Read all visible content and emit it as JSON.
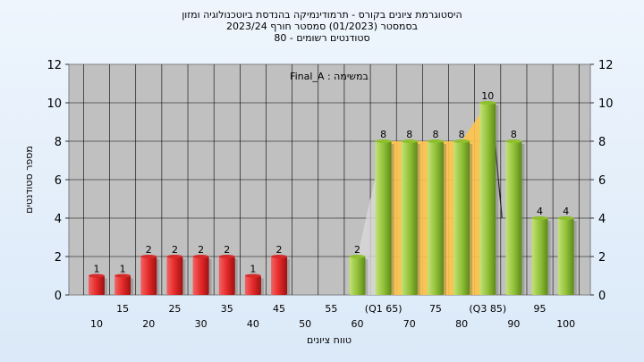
{
  "header": {
    "title_line1": "היסטוגרמת ציונים בקורס - תרמודינמיקה בהנדסת ביוטכנולוגיה ומזון",
    "title_line2": "בסמסטר  (01/2023)  סמסטר חורף  2023/24",
    "title_line3": "סטודנטים רשומים - 80"
  },
  "chart_data": {
    "type": "bar",
    "title": "היסטוגרמת ציונים בקורס - תרמודינמיקה בהנדסת ביוטכנולוגיה ומזון",
    "annotation": "במשימה : Final_A",
    "xlabel": "טווח ציונים",
    "ylabel": "מספר סטודנטים",
    "ylim": [
      0,
      12
    ],
    "y_ticks": [
      0,
      2,
      4,
      6,
      8,
      10,
      12
    ],
    "grid": true,
    "categories": [
      "10",
      "15",
      "20",
      "25",
      "30",
      "35",
      "40",
      "45",
      "50",
      "55",
      "60",
      "65",
      "70",
      "75",
      "80",
      "85",
      "90",
      "95",
      "100"
    ],
    "x_tick_labels": [
      "10",
      "15",
      "20",
      "25",
      "30",
      "35",
      "40",
      "45",
      "50",
      "55",
      "60",
      "(Q1 65)",
      "70",
      "75",
      "80",
      "(Q3 85)",
      "90",
      "95",
      "100"
    ],
    "values": [
      1,
      1,
      2,
      2,
      2,
      2,
      1,
      2,
      0,
      0,
      2,
      8,
      8,
      8,
      8,
      10,
      8,
      4,
      4
    ],
    "data_labels": [
      "1",
      "1",
      "2",
      "2",
      "2",
      "2",
      "1",
      "2",
      "",
      "",
      "2",
      "8",
      "8",
      "8",
      "8",
      "10",
      "8",
      "4",
      "4"
    ],
    "bar_colors": [
      "#d62a2a",
      "#d62a2a",
      "#d62a2a",
      "#d62a2a",
      "#d62a2a",
      "#d62a2a",
      "#d62a2a",
      "#d62a2a",
      "#d62a2a",
      "#d62a2a",
      "#8ebf2c",
      "#8ebf2c",
      "#8ebf2c",
      "#8ebf2c",
      "#8ebf2c",
      "#8ebf2c",
      "#8ebf2c",
      "#8ebf2c",
      "#8ebf2c"
    ],
    "quartile_highlight": {
      "from": "65",
      "to": "85",
      "color": "#ffc44a"
    },
    "colors": {
      "plot_bg": "#c0c0c0",
      "fail": "#d62a2a",
      "pass": "#8ebf2c",
      "highlight": "#ffc44a"
    }
  }
}
